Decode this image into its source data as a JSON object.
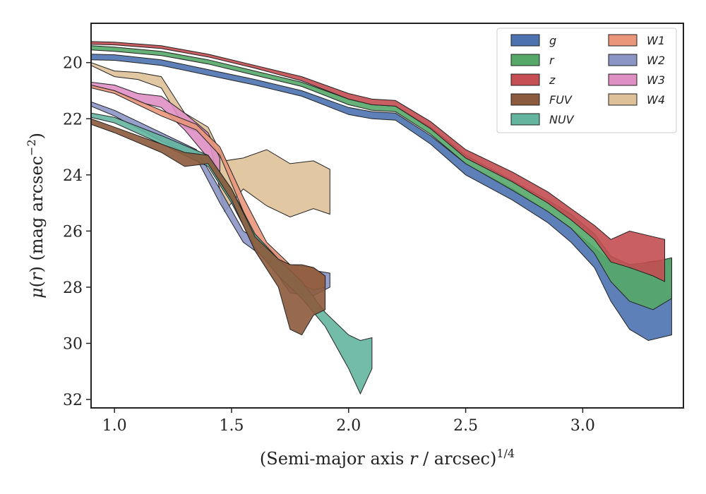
{
  "chart_data": {
    "type": "area",
    "title": "",
    "xlabel_parts": [
      "(Semi-major axis ",
      "r",
      " / arcsec)",
      "1/4"
    ],
    "ylabel_parts": [
      "μ(",
      "r",
      ") (mag arcsec",
      "−2",
      ")"
    ],
    "xlim": [
      0.9,
      3.43
    ],
    "ylim": [
      32.3,
      18.6
    ],
    "y_inverted": true,
    "x_ticks": [
      1.0,
      1.5,
      2.0,
      2.5,
      3.0
    ],
    "x_tick_labels": [
      "1.0",
      "1.5",
      "2.0",
      "2.5",
      "3.0"
    ],
    "y_ticks": [
      20,
      22,
      24,
      26,
      28,
      30,
      32
    ],
    "y_tick_labels": [
      "20",
      "22",
      "24",
      "26",
      "28",
      "30",
      "32"
    ],
    "grid": false,
    "legend_placement": "top-right",
    "legend_columns": 2,
    "series": [
      {
        "name": "g",
        "color": "#4c72b0",
        "x": [
          0.9,
          1.0,
          1.2,
          1.4,
          1.6,
          1.8,
          2.0,
          2.1,
          2.2,
          2.35,
          2.5,
          2.7,
          2.85,
          2.95,
          3.05,
          3.12,
          3.2,
          3.28,
          3.38
        ],
        "y_upper": [
          19.7,
          19.72,
          19.9,
          20.25,
          20.6,
          21.0,
          21.6,
          21.75,
          21.8,
          22.6,
          23.6,
          24.5,
          25.3,
          25.9,
          26.6,
          27.1,
          27.3,
          27.1,
          27.0
        ],
        "y_lower": [
          19.9,
          19.92,
          20.1,
          20.45,
          20.8,
          21.2,
          21.85,
          22.0,
          22.05,
          22.9,
          24.0,
          24.9,
          25.7,
          26.4,
          27.3,
          28.5,
          29.5,
          29.9,
          29.7
        ]
      },
      {
        "name": "r",
        "color": "#55a868",
        "x": [
          0.9,
          1.0,
          1.2,
          1.4,
          1.6,
          1.8,
          2.0,
          2.1,
          2.2,
          2.35,
          2.5,
          2.7,
          2.85,
          2.95,
          3.05,
          3.12,
          3.2,
          3.3,
          3.38
        ],
        "y_upper": [
          19.4,
          19.45,
          19.6,
          19.9,
          20.3,
          20.7,
          21.3,
          21.5,
          21.55,
          22.3,
          23.3,
          24.2,
          24.9,
          25.4,
          26.1,
          26.9,
          27.2,
          27.1,
          26.95
        ],
        "y_lower": [
          19.55,
          19.6,
          19.75,
          20.05,
          20.45,
          20.85,
          21.5,
          21.7,
          21.75,
          22.55,
          23.6,
          24.55,
          25.3,
          25.9,
          26.8,
          27.8,
          28.5,
          28.8,
          28.4
        ]
      },
      {
        "name": "z",
        "color": "#c44e52",
        "x": [
          0.9,
          1.0,
          1.2,
          1.4,
          1.6,
          1.8,
          2.0,
          2.1,
          2.2,
          2.35,
          2.5,
          2.7,
          2.85,
          2.95,
          3.05,
          3.12,
          3.2,
          3.3,
          3.35
        ],
        "y_upper": [
          19.25,
          19.27,
          19.4,
          19.7,
          20.1,
          20.5,
          21.1,
          21.3,
          21.35,
          22.1,
          23.1,
          23.9,
          24.6,
          25.2,
          25.8,
          26.3,
          26.0,
          26.2,
          26.3
        ],
        "y_lower": [
          19.35,
          19.37,
          19.5,
          19.8,
          20.2,
          20.65,
          21.3,
          21.5,
          21.55,
          22.35,
          23.4,
          24.25,
          25.0,
          25.6,
          26.3,
          27.1,
          27.3,
          27.6,
          27.8
        ]
      },
      {
        "name": "FUV",
        "color": "#8c5a3c",
        "x": [
          0.9,
          1.0,
          1.2,
          1.3,
          1.4,
          1.5,
          1.6,
          1.7,
          1.75,
          1.8,
          1.85,
          1.9
        ],
        "y_upper": [
          22.0,
          22.3,
          22.9,
          23.2,
          23.3,
          24.5,
          26.2,
          27.0,
          27.2,
          27.2,
          27.3,
          27.6
        ],
        "y_lower": [
          22.2,
          22.5,
          23.2,
          23.7,
          23.6,
          24.9,
          26.7,
          28.0,
          29.5,
          29.7,
          29.0,
          28.8
        ]
      },
      {
        "name": "NUV",
        "color": "#64b5a0",
        "x": [
          0.9,
          1.0,
          1.2,
          1.4,
          1.5,
          1.6,
          1.7,
          1.8,
          1.9,
          2.0,
          2.05,
          2.1
        ],
        "y_upper": [
          21.8,
          21.95,
          22.6,
          23.3,
          24.5,
          26.1,
          27.0,
          27.8,
          28.9,
          29.7,
          29.9,
          29.8
        ],
        "y_lower": [
          21.95,
          22.15,
          22.9,
          23.7,
          25.0,
          26.6,
          27.6,
          28.4,
          29.4,
          30.9,
          31.8,
          30.9
        ]
      },
      {
        "name": "W1",
        "color": "#e9967a",
        "x": [
          0.9,
          1.0,
          1.2,
          1.35,
          1.45,
          1.55,
          1.65,
          1.75,
          1.85,
          1.9
        ],
        "y_upper": [
          20.8,
          21.0,
          21.7,
          22.2,
          23.0,
          24.8,
          26.4,
          27.2,
          27.3,
          27.6
        ],
        "y_lower": [
          20.9,
          21.1,
          21.9,
          22.4,
          23.3,
          25.3,
          27.0,
          27.7,
          28.1,
          28.0
        ]
      },
      {
        "name": "W2",
        "color": "#8c96c6",
        "x": [
          0.9,
          1.0,
          1.2,
          1.35,
          1.45,
          1.55,
          1.65,
          1.75,
          1.85,
          1.92
        ],
        "y_upper": [
          21.4,
          21.7,
          22.5,
          23.1,
          24.5,
          26.0,
          26.5,
          27.3,
          27.4,
          27.5
        ],
        "y_lower": [
          21.55,
          21.9,
          22.8,
          23.4,
          25.0,
          26.4,
          27.0,
          28.2,
          28.3,
          28.0
        ]
      },
      {
        "name": "W3",
        "color": "#de8fc4",
        "x": [
          0.9,
          1.0,
          1.1,
          1.2,
          1.3,
          1.4,
          1.45
        ],
        "y_upper": [
          20.7,
          20.8,
          21.1,
          21.2,
          21.8,
          22.5,
          23.4
        ],
        "y_lower": [
          20.85,
          21.0,
          21.4,
          21.6,
          22.4,
          23.4,
          24.2
        ]
      },
      {
        "name": "W4",
        "color": "#dfc199",
        "x": [
          0.9,
          1.0,
          1.1,
          1.2,
          1.3,
          1.4,
          1.47,
          1.55,
          1.65,
          1.75,
          1.85,
          1.92
        ],
        "y_upper": [
          20.0,
          20.3,
          20.35,
          20.5,
          21.8,
          22.3,
          23.5,
          23.4,
          23.1,
          23.6,
          23.5,
          23.8
        ],
        "y_lower": [
          20.1,
          20.5,
          20.6,
          20.9,
          22.3,
          22.6,
          25.3,
          24.5,
          25.1,
          25.5,
          25.2,
          25.4
        ]
      }
    ]
  }
}
